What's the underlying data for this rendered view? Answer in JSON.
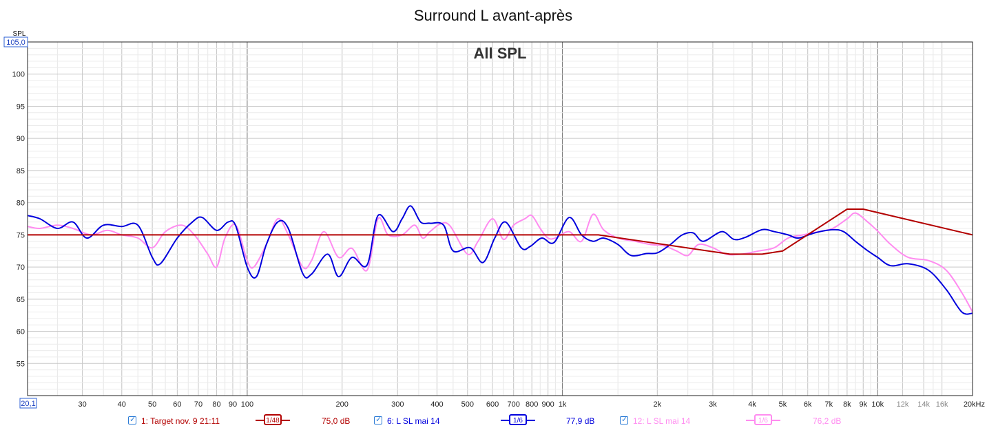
{
  "chart_data": {
    "type": "line",
    "title": "Surround L avant-après",
    "annotation": "All SPL",
    "ylabel": "SPL",
    "y_max_label": "105,0",
    "x_min_label": "20,1",
    "xscale": "log",
    "xlim": [
      20.1,
      20000
    ],
    "ylim": [
      50,
      105
    ],
    "grid": true,
    "y_ticks": [
      55,
      60,
      65,
      70,
      75,
      80,
      85,
      90,
      95,
      100
    ],
    "x_ticks": [
      {
        "v": 30,
        "label": "30"
      },
      {
        "v": 40,
        "label": "40"
      },
      {
        "v": 50,
        "label": "50"
      },
      {
        "v": 60,
        "label": "60"
      },
      {
        "v": 70,
        "label": "70"
      },
      {
        "v": 80,
        "label": "80"
      },
      {
        "v": 90,
        "label": "90"
      },
      {
        "v": 100,
        "label": "100"
      },
      {
        "v": 200,
        "label": "200"
      },
      {
        "v": 300,
        "label": "300"
      },
      {
        "v": 400,
        "label": "400"
      },
      {
        "v": 500,
        "label": "500"
      },
      {
        "v": 600,
        "label": "600"
      },
      {
        "v": 700,
        "label": "700"
      },
      {
        "v": 800,
        "label": "800"
      },
      {
        "v": 900,
        "label": "900"
      },
      {
        "v": 1000,
        "label": "1k"
      },
      {
        "v": 2000,
        "label": "2k"
      },
      {
        "v": 3000,
        "label": "3k"
      },
      {
        "v": 4000,
        "label": "4k"
      },
      {
        "v": 5000,
        "label": "5k"
      },
      {
        "v": 6000,
        "label": "6k"
      },
      {
        "v": 7000,
        "label": "7k"
      },
      {
        "v": 8000,
        "label": "8k"
      },
      {
        "v": 9000,
        "label": "9k"
      },
      {
        "v": 10000,
        "label": "10k"
      },
      {
        "v": 12000,
        "label": "12k"
      },
      {
        "v": 14000,
        "label": "14k"
      },
      {
        "v": 16000,
        "label": "16k"
      },
      {
        "v": 20000,
        "label": "20kHz"
      }
    ],
    "series": [
      {
        "name": "1: Target nov. 9 21:11",
        "color": "#b30000",
        "smoothing": "1/48",
        "level": "75,0 dB",
        "x": [
          20.1,
          1300,
          3400,
          4300,
          5000,
          8000,
          9000,
          20000
        ],
        "y": [
          75,
          75,
          72,
          72,
          72.5,
          79,
          79,
          75
        ]
      },
      {
        "name": "6: L SL mai 14",
        "color": "#0000dd",
        "smoothing": "1/6",
        "level": "77,9 dB",
        "x": [
          20.1,
          22,
          25,
          28,
          31,
          35,
          40,
          45,
          50,
          53,
          60,
          67,
          72,
          80,
          87,
          92,
          100,
          107,
          115,
          125,
          135,
          150,
          160,
          180,
          195,
          215,
          240,
          260,
          290,
          310,
          330,
          355,
          380,
          420,
          450,
          510,
          560,
          610,
          660,
          740,
          790,
          860,
          940,
          1050,
          1150,
          1250,
          1350,
          1500,
          1650,
          1850,
          2000,
          2200,
          2400,
          2600,
          2800,
          3200,
          3500,
          3800,
          4300,
          4700,
          5200,
          5600,
          6300,
          7200,
          7800,
          8500,
          9200,
          10000,
          11000,
          12500,
          14500,
          16500,
          18500,
          20000
        ],
        "y": [
          78,
          77.5,
          76,
          77,
          74.5,
          76.5,
          76.3,
          76.5,
          71.5,
          70.5,
          74.5,
          77,
          77.7,
          75.7,
          77,
          76.4,
          70,
          68.5,
          73.5,
          77,
          76,
          69,
          68.9,
          72,
          68.5,
          71.5,
          70.3,
          78,
          75.5,
          77.5,
          79.5,
          77,
          76.8,
          76.5,
          72.5,
          73,
          70.7,
          74.5,
          77,
          73,
          73.2,
          74.5,
          73.8,
          77.7,
          75,
          74,
          74.5,
          73.5,
          71.8,
          72.1,
          72.2,
          73.5,
          75,
          75.3,
          74,
          75.5,
          74.3,
          74.6,
          75.8,
          75.5,
          75,
          74.5,
          75.3,
          75.8,
          75.5,
          74,
          72.7,
          71.5,
          70.2,
          70.5,
          69.5,
          66.5,
          63,
          62.8
        ]
      },
      {
        "name": "12: L SL mai 14",
        "color": "#ff8cf0",
        "smoothing": "1/6",
        "level": "76,2 dB",
        "x": [
          20.1,
          22,
          25,
          28,
          32,
          36,
          40,
          45,
          50,
          55,
          62,
          68,
          75,
          80,
          85,
          92,
          100,
          105,
          115,
          125,
          135,
          150,
          160,
          175,
          195,
          215,
          240,
          260,
          280,
          310,
          340,
          360,
          380,
          410,
          440,
          500,
          540,
          600,
          650,
          700,
          760,
          800,
          850,
          900,
          950,
          1050,
          1150,
          1250,
          1350,
          1500,
          1700,
          1900,
          2100,
          2300,
          2500,
          2700,
          3000,
          3300,
          3700,
          4200,
          4700,
          5200,
          5800,
          6500,
          7200,
          8000,
          8500,
          9200,
          10000,
          11000,
          12500,
          14500,
          16500,
          18500,
          20000
        ],
        "y": [
          76.3,
          76,
          76.5,
          76,
          75,
          75.7,
          75,
          74.5,
          73,
          75.5,
          76.5,
          75,
          72,
          70,
          74.5,
          76.5,
          71,
          70,
          73.5,
          77.5,
          75,
          70,
          71,
          75.5,
          71.5,
          72.9,
          69.5,
          77.5,
          75,
          75,
          76.5,
          74.5,
          75.5,
          76.7,
          76.4,
          72,
          74,
          77.5,
          74.3,
          76.5,
          77.5,
          78,
          76,
          74.5,
          74.5,
          75.5,
          74,
          78.2,
          75.8,
          74.5,
          74,
          73.5,
          73.3,
          72.5,
          71.8,
          73.5,
          73,
          72,
          72,
          72.5,
          73,
          74.5,
          75,
          75.5,
          76,
          77.5,
          78.4,
          77.2,
          75.6,
          73.5,
          71.5,
          71,
          69.5,
          66,
          63
        ]
      }
    ]
  }
}
